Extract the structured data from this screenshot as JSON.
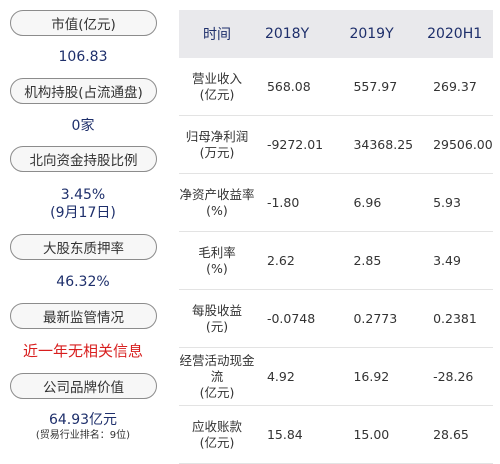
{
  "left_panel": {
    "items": [
      {
        "label": "市值(亿元)",
        "value": "106.83"
      },
      {
        "label": "机构持股(占流通盘)",
        "value": "0家"
      },
      {
        "label": "北向资金持股比例",
        "value": "3.45%",
        "sub": "(9月17日)"
      },
      {
        "label": "大股东质押率",
        "value": "46.32%"
      },
      {
        "label": "最新监管情况",
        "value": "近一年无相关信息"
      },
      {
        "label": "公司品牌价值",
        "value": "64.93亿元",
        "note": "(贸易行业排名：9位)"
      }
    ]
  },
  "table": {
    "headers": [
      "时间",
      "2018Y",
      "2019Y",
      "2020H1"
    ],
    "rows": [
      {
        "metric": "营业收入",
        "unit": "(亿元)",
        "values": [
          "568.08",
          "557.97",
          "269.37"
        ]
      },
      {
        "metric": "归母净利润",
        "unit": "(万元)",
        "values": [
          "-9272.01",
          "34368.25",
          "29506.00"
        ]
      },
      {
        "metric": "净资产收益率",
        "unit": "(%)",
        "values": [
          "-1.80",
          "6.96",
          "5.93"
        ]
      },
      {
        "metric": "毛利率",
        "unit": "(%)",
        "values": [
          "2.62",
          "2.85",
          "3.49"
        ]
      },
      {
        "metric": "每股收益",
        "unit": "(元)",
        "values": [
          "-0.0748",
          "0.2773",
          "0.2381"
        ]
      },
      {
        "metric": "经营活动现金流",
        "unit": "(亿元)",
        "values": [
          "4.92",
          "16.92",
          "-28.26"
        ]
      },
      {
        "metric": "应收账款",
        "unit": "(亿元)",
        "values": [
          "15.84",
          "15.00",
          "28.65"
        ]
      }
    ]
  }
}
